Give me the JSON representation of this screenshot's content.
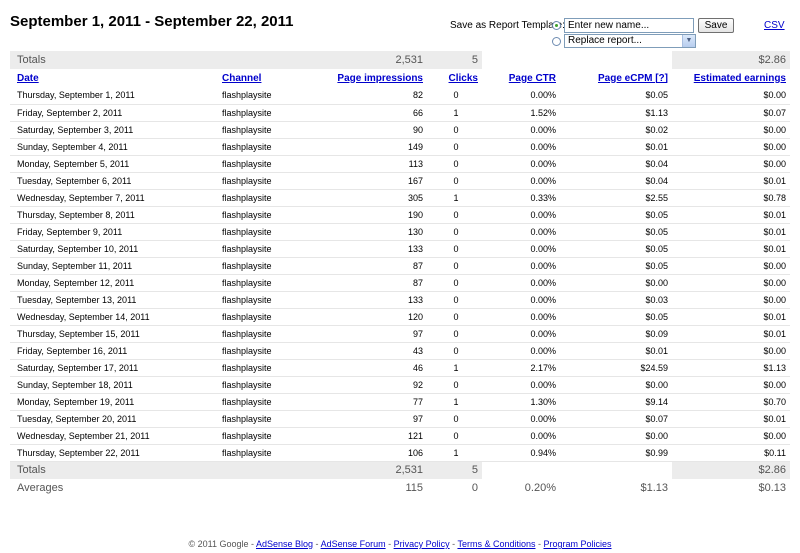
{
  "header": {
    "title": "September 1, 2011 - September 22, 2011",
    "save_template_label": "Save as Report Template:",
    "name_placeholder": "Enter new name...",
    "save_button": "Save",
    "csv_link": "CSV",
    "replace_select_value": "Replace report..."
  },
  "table": {
    "columns": [
      "Date",
      "Channel",
      "Page impressions",
      "Clicks",
      "Page CTR",
      "Page eCPM [?]",
      "Estimated earnings"
    ],
    "totals_top": {
      "label": "Totals",
      "impressions": "2,531",
      "clicks": "5",
      "earnings": "$2.86"
    },
    "rows": [
      [
        "Thursday, September 1, 2011",
        "flashplaysite",
        "82",
        "0",
        "0.00%",
        "$0.05",
        "$0.00"
      ],
      [
        "Friday, September 2, 2011",
        "flashplaysite",
        "66",
        "1",
        "1.52%",
        "$1.13",
        "$0.07"
      ],
      [
        "Saturday, September 3, 2011",
        "flashplaysite",
        "90",
        "0",
        "0.00%",
        "$0.02",
        "$0.00"
      ],
      [
        "Sunday, September 4, 2011",
        "flashplaysite",
        "149",
        "0",
        "0.00%",
        "$0.01",
        "$0.00"
      ],
      [
        "Monday, September 5, 2011",
        "flashplaysite",
        "113",
        "0",
        "0.00%",
        "$0.04",
        "$0.00"
      ],
      [
        "Tuesday, September 6, 2011",
        "flashplaysite",
        "167",
        "0",
        "0.00%",
        "$0.04",
        "$0.01"
      ],
      [
        "Wednesday, September 7, 2011",
        "flashplaysite",
        "305",
        "1",
        "0.33%",
        "$2.55",
        "$0.78"
      ],
      [
        "Thursday, September 8, 2011",
        "flashplaysite",
        "190",
        "0",
        "0.00%",
        "$0.05",
        "$0.01"
      ],
      [
        "Friday, September 9, 2011",
        "flashplaysite",
        "130",
        "0",
        "0.00%",
        "$0.05",
        "$0.01"
      ],
      [
        "Saturday, September 10, 2011",
        "flashplaysite",
        "133",
        "0",
        "0.00%",
        "$0.05",
        "$0.01"
      ],
      [
        "Sunday, September 11, 2011",
        "flashplaysite",
        "87",
        "0",
        "0.00%",
        "$0.05",
        "$0.00"
      ],
      [
        "Monday, September 12, 2011",
        "flashplaysite",
        "87",
        "0",
        "0.00%",
        "$0.00",
        "$0.00"
      ],
      [
        "Tuesday, September 13, 2011",
        "flashplaysite",
        "133",
        "0",
        "0.00%",
        "$0.03",
        "$0.00"
      ],
      [
        "Wednesday, September 14, 2011",
        "flashplaysite",
        "120",
        "0",
        "0.00%",
        "$0.05",
        "$0.01"
      ],
      [
        "Thursday, September 15, 2011",
        "flashplaysite",
        "97",
        "0",
        "0.00%",
        "$0.09",
        "$0.01"
      ],
      [
        "Friday, September 16, 2011",
        "flashplaysite",
        "43",
        "0",
        "0.00%",
        "$0.01",
        "$0.00"
      ],
      [
        "Saturday, September 17, 2011",
        "flashplaysite",
        "46",
        "1",
        "2.17%",
        "$24.59",
        "$1.13"
      ],
      [
        "Sunday, September 18, 2011",
        "flashplaysite",
        "92",
        "0",
        "0.00%",
        "$0.00",
        "$0.00"
      ],
      [
        "Monday, September 19, 2011",
        "flashplaysite",
        "77",
        "1",
        "1.30%",
        "$9.14",
        "$0.70"
      ],
      [
        "Tuesday, September 20, 2011",
        "flashplaysite",
        "97",
        "0",
        "0.00%",
        "$0.07",
        "$0.01"
      ],
      [
        "Wednesday, September 21, 2011",
        "flashplaysite",
        "121",
        "0",
        "0.00%",
        "$0.00",
        "$0.00"
      ],
      [
        "Thursday, September 22, 2011",
        "flashplaysite",
        "106",
        "1",
        "0.94%",
        "$0.99",
        "$0.11"
      ]
    ],
    "totals_bottom": {
      "label": "Totals",
      "impressions": "2,531",
      "clicks": "5",
      "earnings": "$2.86"
    },
    "averages": {
      "label": "Averages",
      "impressions": "115",
      "clicks": "0",
      "ctr": "0.20%",
      "ecpm": "$1.13",
      "earnings": "$0.13"
    }
  },
  "footer": {
    "copyright": "© 2011 Google - ",
    "links": [
      "AdSense Blog",
      "AdSense Forum",
      "Privacy Policy",
      "Terms & Conditions",
      "Program Policies"
    ],
    "separator": " - "
  },
  "colors": {
    "link": "#0000cc",
    "totals_bg": "#ececec",
    "radio_checked": "#3ea12d"
  }
}
